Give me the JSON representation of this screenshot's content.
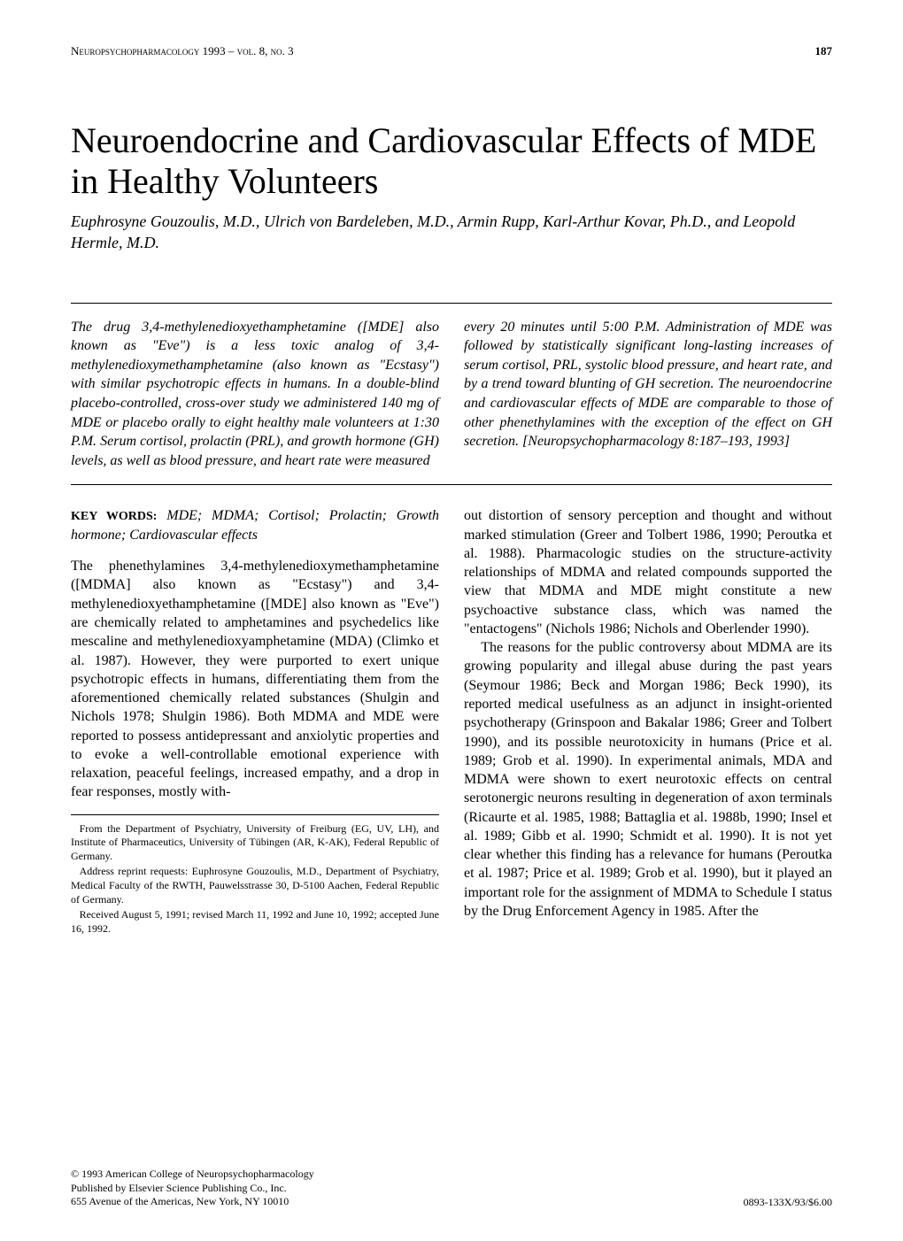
{
  "header": {
    "journal_line": "Neuropsychopharmacology 1993 – vol. 8, no. 3",
    "page_number": "187"
  },
  "title": "Neuroendocrine and Cardiovascular Effects of MDE in Healthy Volunteers",
  "authors": "Euphrosyne Gouzoulis, M.D., Ulrich von Bardeleben, M.D., Armin Rupp, Karl-Arthur Kovar, Ph.D., and Leopold Hermle, M.D.",
  "abstract": {
    "left": "The drug 3,4-methylenedioxyethamphetamine ([MDE] also known as \"Eve\") is a less toxic analog of 3,4-methylenedioxymethamphetamine (also known as \"Ecstasy\") with similar psychotropic effects in humans. In a double-blind placebo-controlled, cross-over study we administered 140 mg of MDE or placebo orally to eight healthy male volunteers at 1:30 P.M. Serum cortisol, prolactin (PRL), and growth hormone (GH) levels, as well as blood pressure, and heart rate were measured",
    "right": "every 20 minutes until 5:00 P.M. Administration of MDE was followed by statistically significant long-lasting increases of serum cortisol, PRL, systolic blood pressure, and heart rate, and by a trend toward blunting of GH secretion. The neuroendocrine and cardiovascular effects of MDE are comparable to those of other phenethylamines with the exception of the effect on GH secretion. [Neuropsychopharmacology 8:187–193, 1993]"
  },
  "keywords": {
    "label": "KEY WORDS:",
    "list": "MDE; MDMA; Cortisol; Prolactin; Growth hormone; Cardiovascular effects"
  },
  "body": {
    "left_p1": "The phenethylamines 3,4-methylenedioxymethamphetamine ([MDMA] also known as \"Ecstasy\") and 3,4-methylenedioxyethamphetamine ([MDE] also known as \"Eve\") are chemically related to amphetamines and psychedelics like mescaline and methylenedioxyamphetamine (MDA) (Climko et al. 1987). However, they were purported to exert unique psychotropic effects in humans, differentiating them from the aforementioned chemically related substances (Shulgin and Nichols 1978; Shulgin 1986). Both MDMA and MDE were reported to possess antidepressant and anxiolytic properties and to evoke a well-controllable emotional experience with relaxation, peaceful feelings, increased empathy, and a drop in fear responses, mostly with-",
    "right_p1": "out distortion of sensory perception and thought and without marked stimulation (Greer and Tolbert 1986, 1990; Peroutka et al. 1988). Pharmacologic studies on the structure-activity relationships of MDMA and related compounds supported the view that MDMA and MDE might constitute a new psychoactive substance class, which was named the \"entactogens\" (Nichols 1986; Nichols and Oberlender 1990).",
    "right_p2": "The reasons for the public controversy about MDMA are its growing popularity and illegal abuse during the past years (Seymour 1986; Beck and Morgan 1986; Beck 1990), its reported medical usefulness as an adjunct in insight-oriented psychotherapy (Grinspoon and Bakalar 1986; Greer and Tolbert 1990), and its possible neurotoxicity in humans (Price et al. 1989; Grob et al. 1990). In experimental animals, MDA and MDMA were shown to exert neurotoxic effects on central serotonergic neurons resulting in degeneration of axon terminals (Ricaurte et al. 1985, 1988; Battaglia et al. 1988b, 1990; Insel et al. 1989; Gibb et al. 1990; Schmidt et al. 1990). It is not yet clear whether this finding has a relevance for humans (Peroutka et al. 1987; Price et al. 1989; Grob et al. 1990), but it played an important role for the assignment of MDMA to Schedule I status by the Drug Enforcement Agency in 1985. After the"
  },
  "footnotes": {
    "f1": "From the Department of Psychiatry, University of Freiburg (EG, UV, LH), and Institute of Pharmaceutics, University of Tübingen (AR, K-AK), Federal Republic of Germany.",
    "f2": "Address reprint requests: Euphrosyne Gouzoulis, M.D., Department of Psychiatry, Medical Faculty of the RWTH, Pauwelsstrasse 30, D-5100 Aachen, Federal Republic of Germany.",
    "f3": "Received August 5, 1991; revised March 11, 1992 and June 10, 1992; accepted June 16, 1992."
  },
  "footer": {
    "copyright_line1": "© 1993 American College of Neuropsychopharmacology",
    "copyright_line2": "Published by Elsevier Science Publishing Co., Inc.",
    "copyright_line3": "655 Avenue of the Americas, New York, NY 10010",
    "issn_price": "0893-133X/93/$6.00"
  },
  "colors": {
    "text": "#000000",
    "background": "#ffffff",
    "rule": "#000000"
  },
  "typography": {
    "title_size_pt": 30,
    "body_size_pt": 12,
    "authors_italic": true
  }
}
